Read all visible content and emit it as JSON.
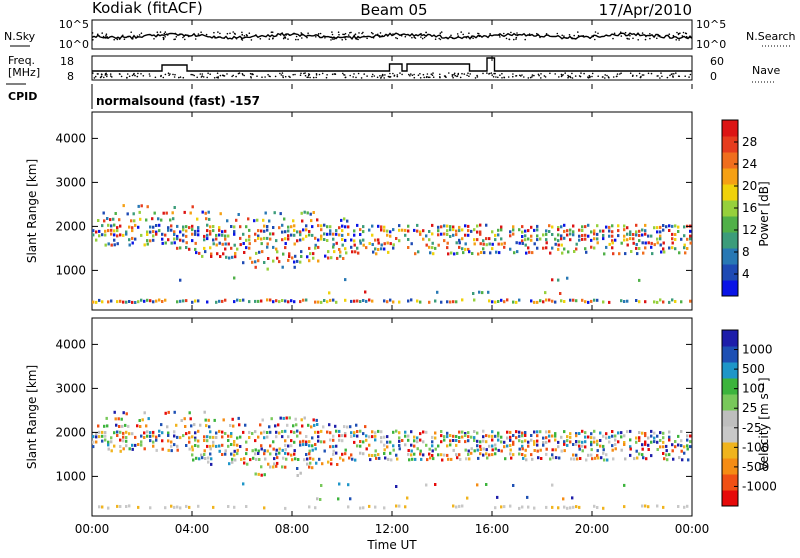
{
  "header": {
    "station": "Kodiak (fitACF)",
    "beam": "Beam 05",
    "date": "17/Apr/2010"
  },
  "top_panels": {
    "nsky_label": "N.Sky",
    "nsky_ticks": [
      "10^5",
      "10^0"
    ],
    "nsearch_label": "N.Search",
    "nsearch_ticks": [
      "10^5",
      "10^0"
    ],
    "freq_label_1": "Freq.",
    "freq_label_2": "[MHz]",
    "freq_ticks": [
      "18",
      "8"
    ],
    "nave_label": "Nave",
    "nave_ticks": [
      "60",
      "0"
    ],
    "cpid_label": "CPID",
    "cpid_text": "normalsound (fast) -157"
  },
  "colors": {
    "power_scale": [
      "#0a14e6",
      "#1e4ab4",
      "#2878b4",
      "#3c9c7a",
      "#50b048",
      "#96d03c",
      "#f0d20a",
      "#f5a014",
      "#f06e1e",
      "#e63c1e",
      "#dc1414"
    ],
    "velocity_scale": [
      "#e60a0a",
      "#f05014",
      "#f58c14",
      "#f0b41e",
      "#c8c8c8",
      "#bebebe",
      "#78c85a",
      "#3cb43c",
      "#1e96c8",
      "#1e50b4",
      "#1e1eaa"
    ]
  },
  "chart_data": [
    {
      "type": "heatmap",
      "panel": "power",
      "ylabel": "Slant Range [km]",
      "yticks": [
        1000,
        2000,
        3000,
        4000
      ],
      "ylim": [
        100,
        4600
      ],
      "xlim": [
        0,
        24
      ],
      "colorbar_label": "Power [dB]",
      "colorbar_ticks": [
        "4",
        "8",
        "12",
        "16",
        "20",
        "24",
        "28"
      ],
      "colorbar_range": [
        0,
        32
      ]
    },
    {
      "type": "heatmap",
      "panel": "velocity",
      "ylabel": "Slant Range [km]",
      "yticks": [
        1000,
        2000,
        3000,
        4000
      ],
      "ylim": [
        100,
        4600
      ],
      "xlim": [
        0,
        24
      ],
      "xlabel": "Time UT",
      "xticks": [
        "00:00",
        "04:00",
        "08:00",
        "12:00",
        "16:00",
        "20:00",
        "00:00"
      ],
      "colorbar_label": "Velocity [m s⁻¹]",
      "colorbar_ticks": [
        "-1000",
        "-500",
        "-100",
        "-25",
        "25",
        "100",
        "500",
        "1000"
      ]
    }
  ]
}
